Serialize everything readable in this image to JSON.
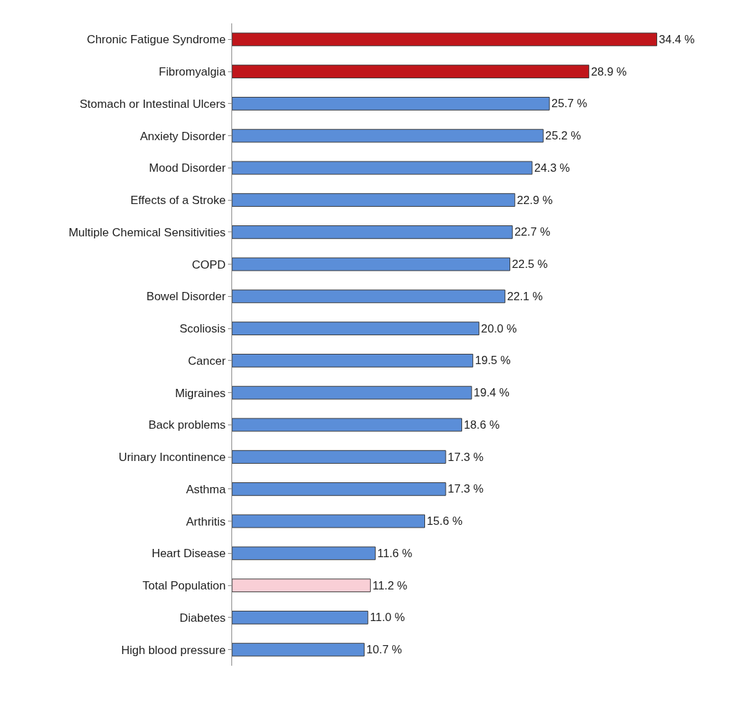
{
  "chart_data": {
    "type": "bar",
    "orientation": "horizontal",
    "categories": [
      "Chronic Fatigue Syndrome",
      "Fibromyalgia",
      "Stomach or Intestinal Ulcers",
      "Anxiety Disorder",
      "Mood Disorder",
      "Effects of a Stroke",
      "Multiple Chemical Sensitivities",
      "COPD",
      "Bowel Disorder",
      "Scoliosis",
      "Cancer",
      "Migraines",
      "Back problems",
      "Urinary Incontinence",
      "Asthma",
      "Arthritis",
      "Heart Disease",
      "Total Population",
      "Diabetes",
      "High blood pressure"
    ],
    "values": [
      34.4,
      28.9,
      25.7,
      25.2,
      24.3,
      22.9,
      22.7,
      22.5,
      22.1,
      20.0,
      19.5,
      19.4,
      18.6,
      17.3,
      17.3,
      15.6,
      11.6,
      11.2,
      11.0,
      10.7
    ],
    "colors": [
      "#c0161b",
      "#c0161b",
      "#5b8ed8",
      "#5b8ed8",
      "#5b8ed8",
      "#5b8ed8",
      "#5b8ed8",
      "#5b8ed8",
      "#5b8ed8",
      "#5b8ed8",
      "#5b8ed8",
      "#5b8ed8",
      "#5b8ed8",
      "#5b8ed8",
      "#5b8ed8",
      "#5b8ed8",
      "#5b8ed8",
      "#f9cfd6",
      "#5b8ed8",
      "#5b8ed8"
    ],
    "value_labels": [
      "34.4 %",
      "28.9 %",
      "25.7 %",
      "25.2 %",
      "24.3 %",
      "22.9 %",
      "22.7 %",
      "22.5 %",
      "22.1 %",
      "20.0 %",
      "19.5 %",
      "19.4 %",
      "18.6 %",
      "17.3 %",
      "17.3 %",
      "15.6 %",
      "11.6 %",
      "11.2 %",
      "11.0 %",
      "10.7 %"
    ],
    "tick_labels": "y"
  }
}
